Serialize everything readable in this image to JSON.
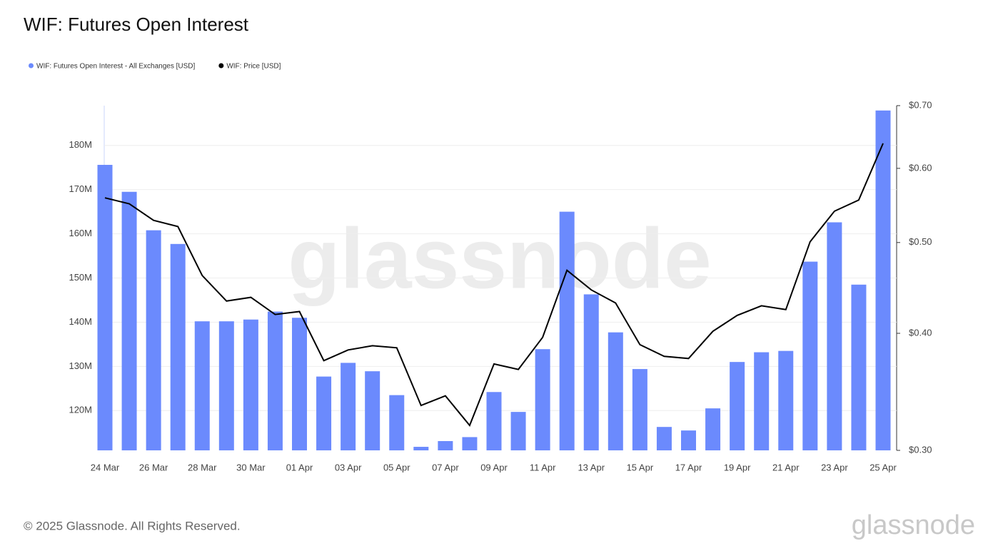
{
  "chart_data": {
    "type": "bar",
    "title": "WIF: Futures Open Interest",
    "watermark": "glassnode",
    "categories": [
      "24 Mar",
      null,
      "26 Mar",
      null,
      "28 Mar",
      null,
      "30 Mar",
      null,
      "01 Apr",
      null,
      "03 Apr",
      null,
      "05 Apr",
      null,
      "07 Apr",
      null,
      "09 Apr",
      null,
      "11 Apr",
      null,
      "13 Apr",
      null,
      "15 Apr",
      null,
      "17 Apr",
      null,
      "19 Apr",
      null,
      "21 Apr",
      null,
      "23 Apr",
      null,
      "25 Apr"
    ],
    "series": [
      {
        "name": "WIF: Futures Open Interest - All Exchanges [USD]",
        "type": "bar",
        "color": "#6b8afd",
        "values": [
          175.6,
          169.5,
          160.8,
          157.7,
          140.2,
          140.2,
          140.6,
          142.4,
          141.0,
          127.7,
          130.8,
          128.9,
          123.5,
          111.8,
          113.1,
          114.0,
          124.2,
          119.7,
          133.9,
          165.0,
          146.3,
          137.7,
          129.4,
          116.3,
          115.5,
          120.5,
          131.0,
          133.2,
          133.5,
          153.7,
          162.6,
          148.5,
          187.9
        ]
      },
      {
        "name": "WIF: Price [USD]",
        "type": "line",
        "color": "#000000",
        "axis": "y2",
        "values": [
          0.558,
          0.55,
          0.528,
          0.52,
          0.461,
          0.433,
          0.437,
          0.419,
          0.422,
          0.374,
          0.384,
          0.388,
          0.386,
          0.335,
          0.343,
          0.319,
          0.371,
          0.366,
          0.396,
          0.467,
          0.445,
          0.431,
          0.389,
          0.378,
          0.376,
          0.402,
          0.418,
          0.428,
          0.424,
          0.501,
          0.54,
          0.555,
          0.638
        ]
      }
    ],
    "ylim": [
      111,
      189
    ],
    "yticks": [
      {
        "value": 120,
        "label": "120M"
      },
      {
        "value": 130,
        "label": "130M"
      },
      {
        "value": 140,
        "label": "140M"
      },
      {
        "value": 150,
        "label": "150M"
      },
      {
        "value": 160,
        "label": "160M"
      },
      {
        "value": 170,
        "label": "170M"
      },
      {
        "value": 180,
        "label": "180M"
      }
    ],
    "y2lim": [
      0.3,
      0.7
    ],
    "y2log": true,
    "y2ticks": [
      {
        "value": 0.3,
        "label": "$0.30"
      },
      {
        "value": 0.4,
        "label": "$0.40"
      },
      {
        "value": 0.5,
        "label": "$0.50"
      },
      {
        "value": 0.6,
        "label": "$0.60"
      },
      {
        "value": 0.7,
        "label": "$0.70"
      }
    ],
    "grid": true,
    "legend": "top-left"
  },
  "footer": {
    "copyright": "© 2025 Glassnode. All Rights Reserved.",
    "logo": "glassnode"
  }
}
